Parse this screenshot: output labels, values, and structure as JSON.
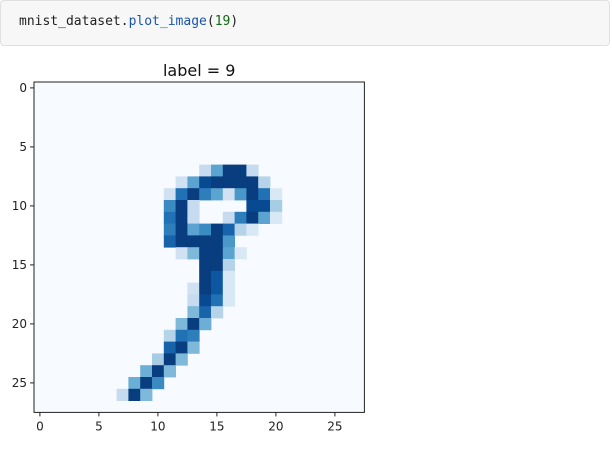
{
  "code_cell": {
    "object": "mnist_dataset",
    "method": "plot_image",
    "argument": "19"
  },
  "chart_data": {
    "type": "heatmap",
    "title": "label = 9",
    "colormap": "Blues",
    "value_range": [
      0,
      1
    ],
    "xlim": [
      -0.5,
      27.5
    ],
    "ylim": [
      27.5,
      -0.5
    ],
    "x_ticks": [
      0,
      5,
      10,
      15,
      20,
      25
    ],
    "y_ticks": [
      0,
      5,
      10,
      15,
      20,
      25
    ],
    "x_tick_labels": [
      "0",
      "5",
      "10",
      "15",
      "20",
      "25"
    ],
    "y_tick_labels": [
      "0",
      "5",
      "10",
      "15",
      "20",
      "25"
    ],
    "rows": 28,
    "cols": 28,
    "pixels": [
      [
        7,
        14,
        0.25
      ],
      [
        7,
        15,
        0.55
      ],
      [
        7,
        16,
        0.95
      ],
      [
        7,
        17,
        0.95
      ],
      [
        7,
        18,
        0.25
      ],
      [
        8,
        12,
        0.2
      ],
      [
        8,
        13,
        0.55
      ],
      [
        8,
        14,
        0.9
      ],
      [
        8,
        15,
        0.95
      ],
      [
        8,
        16,
        0.95
      ],
      [
        8,
        17,
        0.95
      ],
      [
        8,
        18,
        0.95
      ],
      [
        8,
        19,
        0.3
      ],
      [
        9,
        11,
        0.2
      ],
      [
        9,
        12,
        0.75
      ],
      [
        9,
        13,
        0.95
      ],
      [
        9,
        14,
        0.7
      ],
      [
        9,
        15,
        0.55
      ],
      [
        9,
        16,
        0.2
      ],
      [
        9,
        17,
        0.6
      ],
      [
        9,
        18,
        0.95
      ],
      [
        9,
        19,
        0.75
      ],
      [
        9,
        20,
        0.15
      ],
      [
        10,
        11,
        0.65
      ],
      [
        10,
        12,
        0.95
      ],
      [
        10,
        13,
        0.25
      ],
      [
        10,
        18,
        0.9
      ],
      [
        10,
        19,
        0.9
      ],
      [
        10,
        20,
        0.35
      ],
      [
        11,
        11,
        0.75
      ],
      [
        11,
        12,
        0.95
      ],
      [
        11,
        13,
        0.25
      ],
      [
        11,
        16,
        0.25
      ],
      [
        11,
        17,
        0.7
      ],
      [
        11,
        18,
        0.95
      ],
      [
        11,
        19,
        0.55
      ],
      [
        11,
        20,
        0.15
      ],
      [
        12,
        11,
        0.7
      ],
      [
        12,
        12,
        0.95
      ],
      [
        12,
        13,
        0.55
      ],
      [
        12,
        14,
        0.65
      ],
      [
        12,
        15,
        0.95
      ],
      [
        12,
        16,
        0.8
      ],
      [
        12,
        17,
        0.3
      ],
      [
        12,
        18,
        0.15
      ],
      [
        13,
        11,
        0.8
      ],
      [
        13,
        12,
        0.95
      ],
      [
        13,
        13,
        0.95
      ],
      [
        13,
        14,
        0.95
      ],
      [
        13,
        15,
        0.95
      ],
      [
        13,
        16,
        0.6
      ],
      [
        14,
        12,
        0.2
      ],
      [
        14,
        13,
        0.45
      ],
      [
        14,
        14,
        0.95
      ],
      [
        14,
        15,
        0.95
      ],
      [
        14,
        16,
        0.55
      ],
      [
        14,
        17,
        0.15
      ],
      [
        15,
        14,
        0.95
      ],
      [
        15,
        15,
        0.95
      ],
      [
        15,
        16,
        0.3
      ],
      [
        16,
        14,
        0.95
      ],
      [
        16,
        15,
        0.85
      ],
      [
        16,
        16,
        0.15
      ],
      [
        17,
        13,
        0.2
      ],
      [
        17,
        14,
        0.95
      ],
      [
        17,
        15,
        0.85
      ],
      [
        17,
        16,
        0.15
      ],
      [
        18,
        13,
        0.25
      ],
      [
        18,
        14,
        0.9
      ],
      [
        18,
        15,
        0.75
      ],
      [
        18,
        16,
        0.15
      ],
      [
        19,
        13,
        0.45
      ],
      [
        19,
        14,
        0.8
      ],
      [
        19,
        15,
        0.3
      ],
      [
        20,
        12,
        0.45
      ],
      [
        20,
        13,
        0.95
      ],
      [
        20,
        14,
        0.5
      ],
      [
        21,
        11,
        0.3
      ],
      [
        21,
        12,
        0.75
      ],
      [
        21,
        13,
        0.7
      ],
      [
        22,
        11,
        0.8
      ],
      [
        22,
        12,
        0.95
      ],
      [
        22,
        13,
        0.45
      ],
      [
        23,
        10,
        0.35
      ],
      [
        23,
        11,
        0.95
      ],
      [
        23,
        12,
        0.45
      ],
      [
        24,
        9,
        0.5
      ],
      [
        24,
        10,
        0.95
      ],
      [
        24,
        11,
        0.45
      ],
      [
        25,
        8,
        0.5
      ],
      [
        25,
        9,
        0.95
      ],
      [
        25,
        10,
        0.65
      ],
      [
        26,
        7,
        0.25
      ],
      [
        26,
        8,
        0.95
      ],
      [
        26,
        9,
        0.45
      ]
    ]
  }
}
